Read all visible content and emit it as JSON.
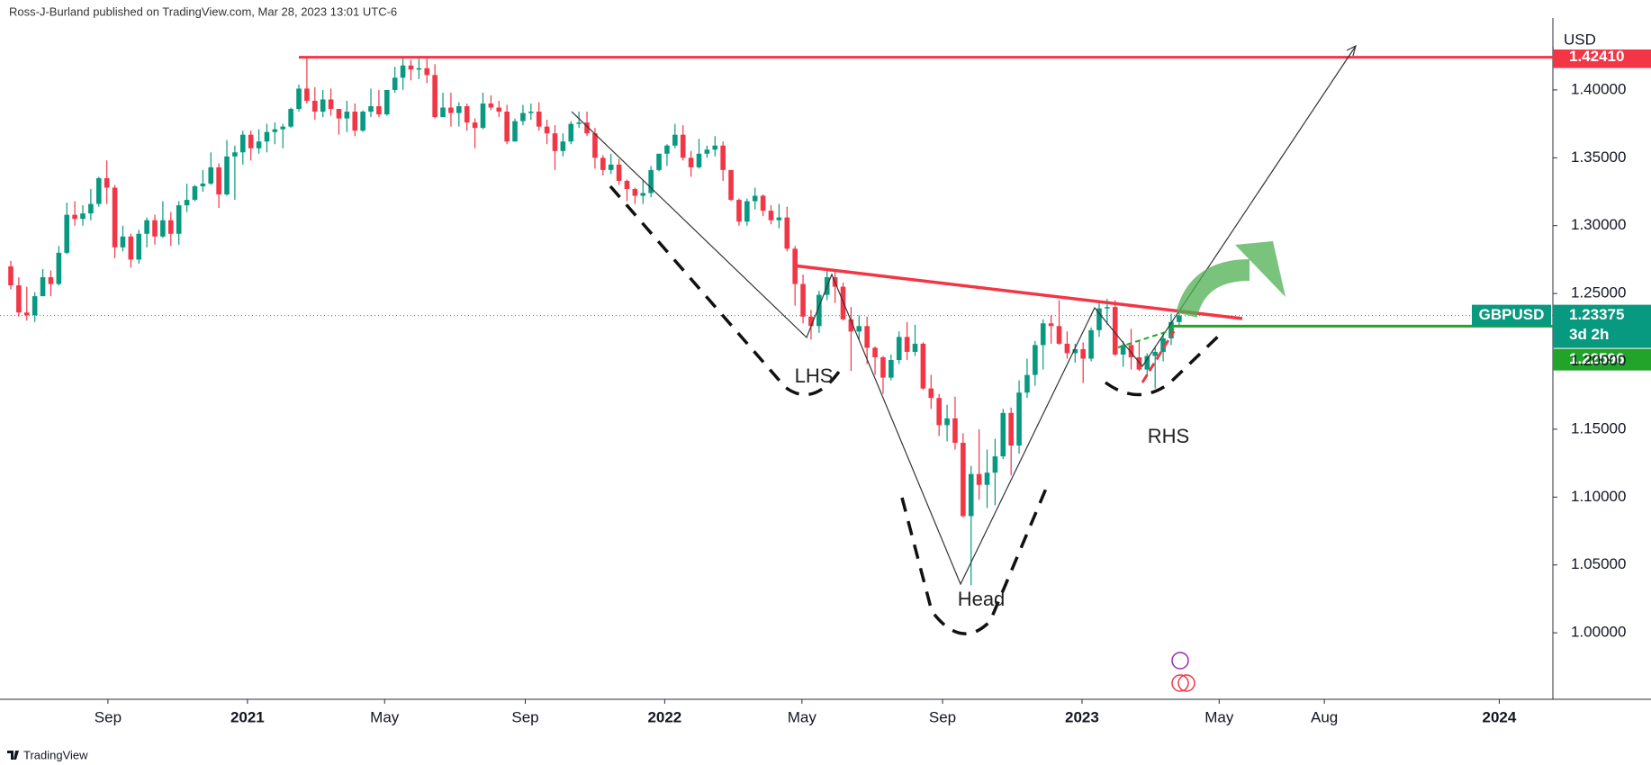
{
  "header": "Ross-J-Burland published on TradingView.com, Mar 28, 2023 13:01 UTC-6",
  "footer": "TradingView",
  "chart_data": {
    "type": "candlestick",
    "y_axis_label": "USD",
    "series": [
      {
        "name": "GBPUSD",
        "up_color": "#089981",
        "down_color": "#f23645",
        "open": [
          1.27,
          1.256,
          1.236,
          1.234,
          1.248,
          1.262,
          1.257,
          1.28,
          1.308,
          1.305,
          1.309,
          1.316,
          1.335,
          1.328,
          1.284,
          1.292,
          1.275,
          1.294,
          1.304,
          1.292,
          1.304,
          1.294,
          1.315,
          1.319,
          1.329,
          1.331,
          1.343,
          1.323,
          1.351,
          1.354,
          1.367,
          1.357,
          1.362,
          1.369,
          1.371,
          1.373,
          1.386,
          1.401,
          1.392,
          1.384,
          1.393,
          1.386,
          1.379,
          1.384,
          1.37,
          1.384,
          1.388,
          1.382,
          1.4,
          1.409,
          1.418,
          1.415,
          1.416,
          1.411,
          1.38,
          1.387,
          1.383,
          1.388,
          1.376,
          1.372,
          1.39,
          1.387,
          1.384,
          1.362,
          1.377,
          1.383,
          1.384,
          1.373,
          1.368,
          1.355,
          1.362,
          1.375,
          1.376,
          1.368,
          1.35,
          1.341,
          1.345,
          1.333,
          1.327,
          1.322,
          1.324,
          1.341,
          1.353,
          1.359,
          1.367,
          1.35,
          1.343,
          1.353,
          1.356,
          1.359,
          1.341,
          1.319,
          1.303,
          1.318,
          1.322,
          1.311,
          1.304,
          1.306,
          1.283,
          1.257,
          1.233,
          1.226,
          1.249,
          1.262,
          1.255,
          1.231,
          1.222,
          1.226,
          1.21,
          1.203,
          1.188,
          1.201,
          1.218,
          1.207,
          1.213,
          1.18,
          1.173,
          1.153,
          1.158,
          1.14,
          1.086,
          1.117,
          1.109,
          1.118,
          1.13,
          1.162,
          1.138,
          1.177,
          1.19,
          1.212,
          1.228,
          1.226,
          1.213,
          1.206,
          1.209,
          1.202,
          1.223,
          1.239,
          1.24,
          1.205,
          1.212,
          1.203,
          1.194,
          1.204,
          1.207,
          1.217,
          1.229
        ],
        "high": [
          1.274,
          1.262,
          1.255,
          1.251,
          1.268,
          1.267,
          1.285,
          1.317,
          1.318,
          1.315,
          1.327,
          1.336,
          1.348,
          1.33,
          1.3,
          1.294,
          1.297,
          1.306,
          1.308,
          1.318,
          1.31,
          1.318,
          1.331,
          1.33,
          1.341,
          1.354,
          1.346,
          1.363,
          1.359,
          1.37,
          1.37,
          1.371,
          1.375,
          1.376,
          1.375,
          1.387,
          1.404,
          1.424,
          1.402,
          1.4,
          1.401,
          1.386,
          1.392,
          1.39,
          1.385,
          1.401,
          1.4,
          1.4,
          1.417,
          1.424,
          1.422,
          1.423,
          1.423,
          1.419,
          1.398,
          1.398,
          1.391,
          1.39,
          1.379,
          1.398,
          1.396,
          1.392,
          1.389,
          1.379,
          1.389,
          1.39,
          1.391,
          1.378,
          1.374,
          1.368,
          1.377,
          1.384,
          1.384,
          1.372,
          1.352,
          1.353,
          1.349,
          1.334,
          1.328,
          1.334,
          1.344,
          1.353,
          1.36,
          1.375,
          1.374,
          1.355,
          1.364,
          1.359,
          1.366,
          1.362,
          1.341,
          1.32,
          1.32,
          1.328,
          1.323,
          1.315,
          1.316,
          1.314,
          1.285,
          1.264,
          1.238,
          1.252,
          1.267,
          1.266,
          1.258,
          1.24,
          1.234,
          1.233,
          1.211,
          1.204,
          1.205,
          1.222,
          1.229,
          1.227,
          1.214,
          1.19,
          1.176,
          1.168,
          1.174,
          1.147,
          1.123,
          1.15,
          1.135,
          1.143,
          1.165,
          1.166,
          1.186,
          1.202,
          1.215,
          1.231,
          1.234,
          1.245,
          1.222,
          1.213,
          1.214,
          1.225,
          1.243,
          1.246,
          1.245,
          1.215,
          1.224,
          1.215,
          1.206,
          1.211,
          1.221,
          1.235,
          1.236
        ],
        "low": [
          1.253,
          1.233,
          1.23,
          1.229,
          1.248,
          1.248,
          1.256,
          1.279,
          1.3,
          1.3,
          1.304,
          1.314,
          1.316,
          1.276,
          1.281,
          1.269,
          1.272,
          1.284,
          1.286,
          1.291,
          1.285,
          1.286,
          1.31,
          1.318,
          1.325,
          1.33,
          1.313,
          1.322,
          1.319,
          1.345,
          1.348,
          1.353,
          1.354,
          1.36,
          1.357,
          1.372,
          1.384,
          1.39,
          1.378,
          1.38,
          1.381,
          1.367,
          1.369,
          1.366,
          1.369,
          1.38,
          1.38,
          1.381,
          1.398,
          1.4,
          1.407,
          1.408,
          1.405,
          1.379,
          1.38,
          1.373,
          1.373,
          1.37,
          1.357,
          1.371,
          1.385,
          1.38,
          1.36,
          1.362,
          1.374,
          1.378,
          1.37,
          1.36,
          1.341,
          1.351,
          1.36,
          1.372,
          1.366,
          1.342,
          1.337,
          1.338,
          1.33,
          1.318,
          1.316,
          1.316,
          1.321,
          1.34,
          1.344,
          1.357,
          1.348,
          1.336,
          1.342,
          1.35,
          1.351,
          1.333,
          1.318,
          1.3,
          1.3,
          1.312,
          1.307,
          1.301,
          1.298,
          1.281,
          1.241,
          1.228,
          1.216,
          1.221,
          1.245,
          1.243,
          1.23,
          1.193,
          1.216,
          1.198,
          1.19,
          1.176,
          1.186,
          1.198,
          1.201,
          1.204,
          1.179,
          1.165,
          1.145,
          1.141,
          1.135,
          1.085,
          1.035,
          1.098,
          1.092,
          1.094,
          1.128,
          1.116,
          1.132,
          1.173,
          1.182,
          1.194,
          1.213,
          1.212,
          1.202,
          1.199,
          1.184,
          1.2,
          1.218,
          1.227,
          1.204,
          1.196,
          1.194,
          1.193,
          1.189,
          1.18,
          1.2,
          1.212,
          1.225
        ],
        "close": [
          1.256,
          1.236,
          1.234,
          1.248,
          1.262,
          1.257,
          1.28,
          1.308,
          1.305,
          1.309,
          1.316,
          1.335,
          1.328,
          1.284,
          1.292,
          1.275,
          1.294,
          1.304,
          1.292,
          1.304,
          1.294,
          1.315,
          1.319,
          1.329,
          1.331,
          1.343,
          1.323,
          1.351,
          1.354,
          1.367,
          1.357,
          1.362,
          1.369,
          1.371,
          1.373,
          1.386,
          1.401,
          1.392,
          1.384,
          1.393,
          1.386,
          1.379,
          1.384,
          1.37,
          1.384,
          1.388,
          1.382,
          1.4,
          1.409,
          1.418,
          1.415,
          1.416,
          1.411,
          1.38,
          1.387,
          1.383,
          1.388,
          1.376,
          1.372,
          1.39,
          1.387,
          1.384,
          1.362,
          1.377,
          1.383,
          1.384,
          1.373,
          1.368,
          1.355,
          1.362,
          1.375,
          1.376,
          1.368,
          1.35,
          1.341,
          1.345,
          1.333,
          1.327,
          1.322,
          1.324,
          1.341,
          1.353,
          1.359,
          1.367,
          1.35,
          1.343,
          1.353,
          1.356,
          1.359,
          1.341,
          1.319,
          1.303,
          1.318,
          1.322,
          1.311,
          1.304,
          1.306,
          1.283,
          1.257,
          1.233,
          1.226,
          1.249,
          1.262,
          1.255,
          1.231,
          1.222,
          1.226,
          1.21,
          1.203,
          1.188,
          1.201,
          1.218,
          1.207,
          1.213,
          1.18,
          1.173,
          1.153,
          1.158,
          1.14,
          1.086,
          1.117,
          1.109,
          1.118,
          1.13,
          1.162,
          1.138,
          1.177,
          1.19,
          1.212,
          1.228,
          1.226,
          1.213,
          1.206,
          1.209,
          1.202,
          1.223,
          1.239,
          1.24,
          1.205,
          1.212,
          1.203,
          1.194,
          1.204,
          1.207,
          1.217,
          1.229,
          1.23375
        ]
      }
    ],
    "last_price": 1.23375,
    "time_to_close": "3d 2h",
    "levels": [
      {
        "value": 1.4241,
        "label": "1.42410",
        "color": "#f23645"
      },
      {
        "value": 1.22596,
        "label": "1.22596",
        "color": "#22a32a"
      }
    ],
    "xlim": [
      -1.35,
      192.7
    ],
    "xticks": [
      {
        "value": 12.14,
        "label": "Sep"
      },
      {
        "value": 29.57,
        "label": "2021"
      },
      {
        "value": 46.71,
        "label": "May"
      },
      {
        "value": 64.29,
        "label": "Sep"
      },
      {
        "value": 81.71,
        "label": "2022"
      },
      {
        "value": 98.86,
        "label": "May"
      },
      {
        "value": 116.43,
        "label": "Sep"
      },
      {
        "value": 133.86,
        "label": "2023"
      },
      {
        "value": 151.0,
        "label": "May"
      },
      {
        "value": 164.14,
        "label": "Aug"
      },
      {
        "value": 186.0,
        "label": "2024"
      }
    ],
    "ylim": [
      0.951,
      1.453
    ],
    "yticks": [
      {
        "value": 1.0,
        "label": "1.00000"
      },
      {
        "value": 1.05,
        "label": "1.05000"
      },
      {
        "value": 1.1,
        "label": "1.10000"
      },
      {
        "value": 1.15,
        "label": "1.15000"
      },
      {
        "value": 1.2,
        "label": "1.20000"
      },
      {
        "value": 1.25,
        "label": "1.25000"
      },
      {
        "value": 1.3,
        "label": "1.30000"
      },
      {
        "value": 1.35,
        "label": "1.35000"
      },
      {
        "value": 1.4,
        "label": "1.40000"
      }
    ],
    "annotations": [
      "LHS",
      "Head",
      "RHS"
    ]
  }
}
